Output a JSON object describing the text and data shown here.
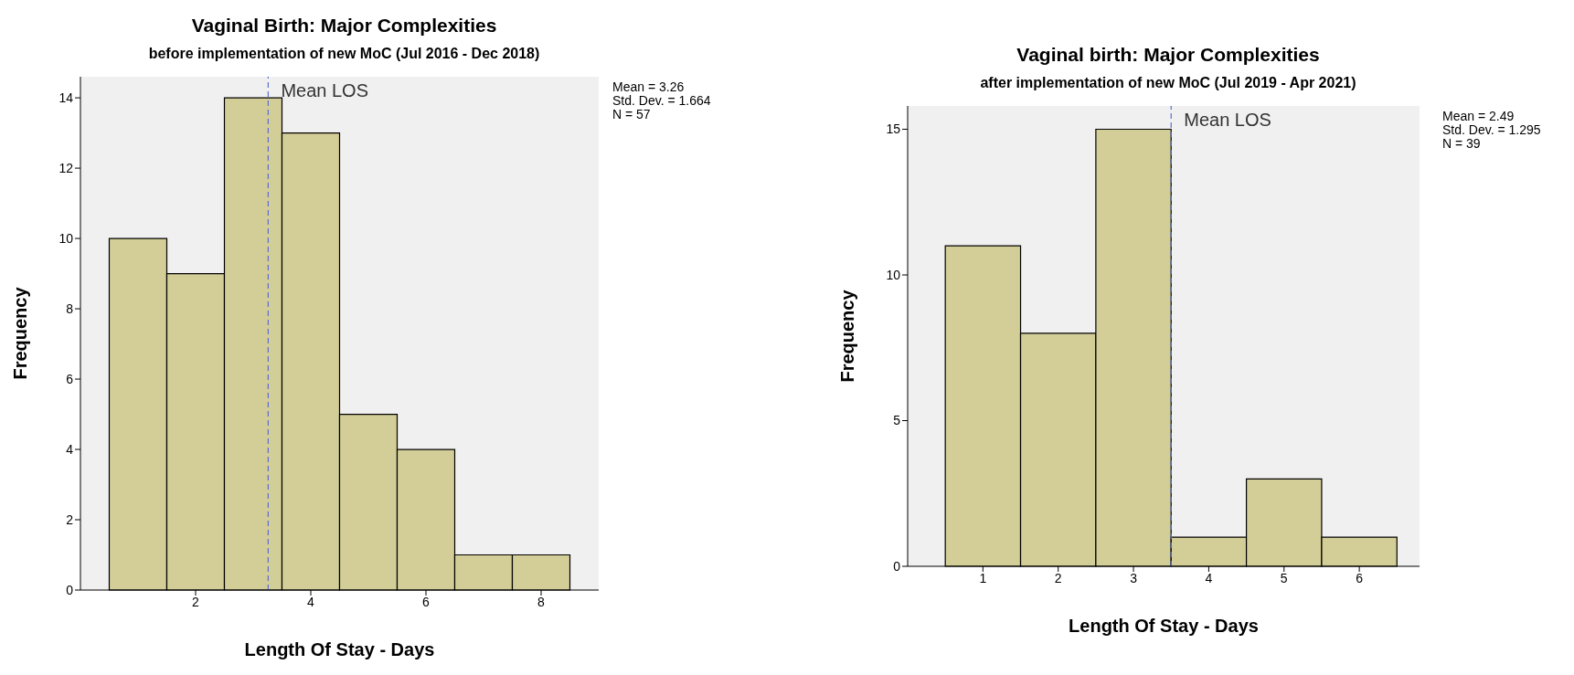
{
  "chart_data": [
    {
      "type": "histogram",
      "title": "Vaginal Birth: Major Complexities",
      "subtitle": "before implementation of new MoC (Jul 2016 - Dec 2018)",
      "xlabel": "Length Of Stay - Days",
      "ylabel": "Frequency",
      "bins": [
        0.5,
        1.5,
        2.5,
        3.5,
        4.5,
        5.5,
        6.5,
        7.5,
        8.5
      ],
      "values": [
        10,
        9,
        14,
        13,
        5,
        4,
        1,
        1
      ],
      "color": "#d3ce97",
      "xlim": [
        0,
        9
      ],
      "xticks": [
        2,
        4,
        6,
        8
      ],
      "ylim": [
        0,
        14.6
      ],
      "yticks": [
        0,
        2,
        4,
        6,
        8,
        10,
        12,
        14
      ],
      "grid": false,
      "ref_lines": [
        {
          "axis": "x",
          "value": 3.26,
          "label": "Mean LOS",
          "color": "#5b6fd0",
          "line_style": "dashed"
        }
      ],
      "annotations": [
        "Mean = 3.26",
        "Std. Dev. = 1.664",
        "N = 57"
      ]
    },
    {
      "type": "histogram",
      "title": "Vaginal birth: Major Complexities",
      "subtitle": "after implementation of new MoC (Jul 2019 - Apr 2021)",
      "xlabel": "Length Of Stay - Days",
      "ylabel": "Frequency",
      "bins": [
        0.5,
        1.5,
        2.5,
        3.5,
        4.5,
        5.5,
        6.5
      ],
      "values": [
        11,
        8,
        15,
        1,
        3,
        1
      ],
      "color": "#d3ce97",
      "xlim": [
        0,
        6.8
      ],
      "xticks": [
        1,
        2,
        3,
        4,
        5,
        6
      ],
      "ylim": [
        0,
        15.8
      ],
      "yticks": [
        0,
        5,
        10,
        15
      ],
      "grid": false,
      "ref_lines": [
        {
          "axis": "x",
          "value": 3.5,
          "label": "Mean LOS",
          "color": "#5b6fd0",
          "line_style": "dashed"
        }
      ],
      "annotations": [
        "Mean = 2.49",
        "Std. Dev. = 1.295",
        "N = 39"
      ]
    }
  ]
}
